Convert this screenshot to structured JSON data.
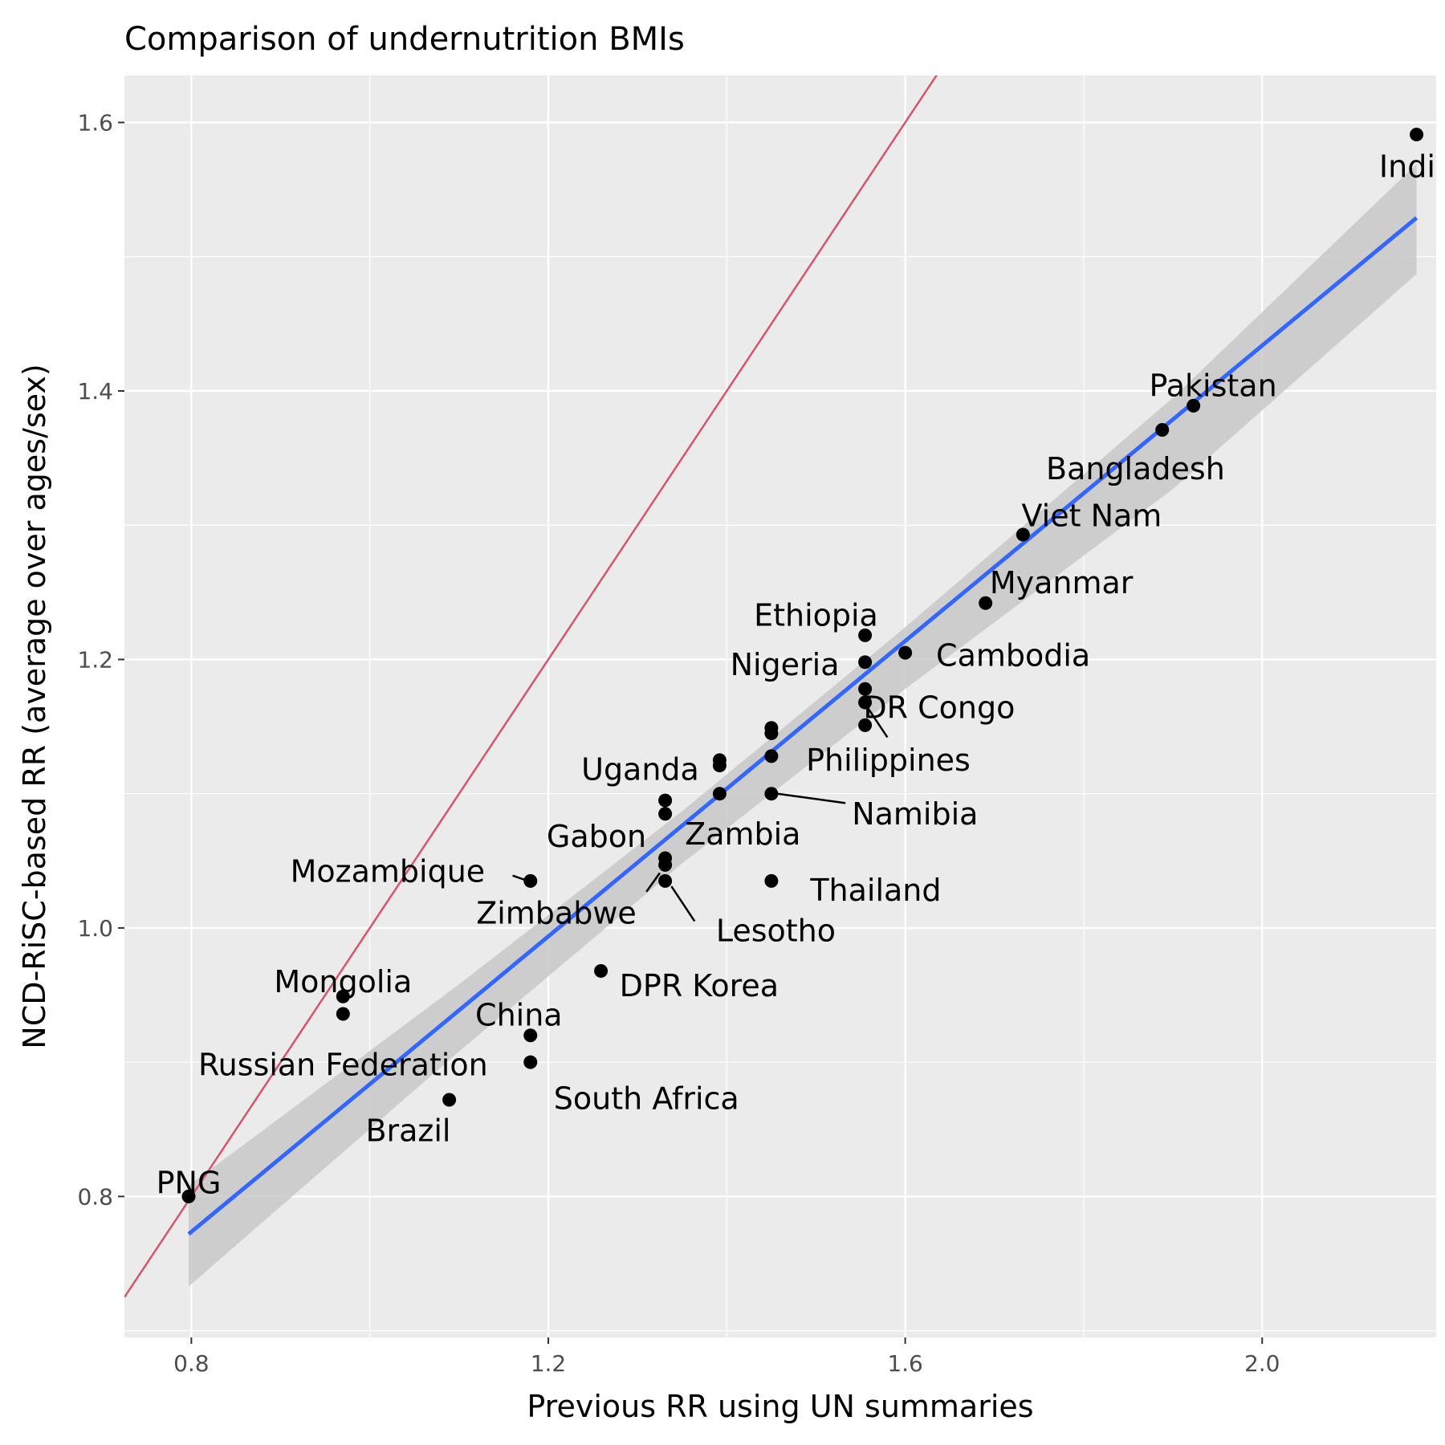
{
  "chart_data": {
    "type": "scatter",
    "title": "Comparison of undernutrition BMIs",
    "xlabel": "Previous RR using UN summaries",
    "ylabel": "NCD-RiSC-based RR (average over ages/sex)",
    "xlim": [
      0.725,
      2.195
    ],
    "ylim": [
      0.695,
      1.635
    ],
    "x_ticks": [
      "0.8",
      "1.2",
      "1.6",
      "2.0"
    ],
    "y_ticks": [
      "0.8",
      "1.0",
      "1.2",
      "1.4",
      "1.6"
    ],
    "grid": true,
    "points": [
      {
        "x": 0.797,
        "y": 0.8
      },
      {
        "x": 0.97,
        "y": 0.949
      },
      {
        "x": 0.97,
        "y": 0.936
      },
      {
        "x": 1.089,
        "y": 0.872
      },
      {
        "x": 1.18,
        "y": 0.92
      },
      {
        "x": 1.18,
        "y": 0.9
      },
      {
        "x": 1.18,
        "y": 1.035
      },
      {
        "x": 1.259,
        "y": 0.968
      },
      {
        "x": 1.331,
        "y": 1.095
      },
      {
        "x": 1.331,
        "y": 1.085
      },
      {
        "x": 1.331,
        "y": 1.052
      },
      {
        "x": 1.331,
        "y": 1.047
      },
      {
        "x": 1.331,
        "y": 1.035
      },
      {
        "x": 1.392,
        "y": 1.125
      },
      {
        "x": 1.392,
        "y": 1.121
      },
      {
        "x": 1.392,
        "y": 1.1
      },
      {
        "x": 1.45,
        "y": 1.149
      },
      {
        "x": 1.45,
        "y": 1.145
      },
      {
        "x": 1.45,
        "y": 1.128
      },
      {
        "x": 1.45,
        "y": 1.1
      },
      {
        "x": 1.45,
        "y": 1.035
      },
      {
        "x": 1.555,
        "y": 1.218
      },
      {
        "x": 1.555,
        "y": 1.198
      },
      {
        "x": 1.555,
        "y": 1.178
      },
      {
        "x": 1.555,
        "y": 1.168
      },
      {
        "x": 1.555,
        "y": 1.151
      },
      {
        "x": 1.6,
        "y": 1.205
      },
      {
        "x": 1.69,
        "y": 1.242
      },
      {
        "x": 1.732,
        "y": 1.293
      },
      {
        "x": 1.888,
        "y": 1.371
      },
      {
        "x": 1.923,
        "y": 1.389
      },
      {
        "x": 2.173,
        "y": 1.591
      }
    ],
    "labels": [
      {
        "text": "PNG",
        "x": 0.797,
        "y": 0.8,
        "lx": 0.797,
        "ly": 0.81,
        "anchor": "middle"
      },
      {
        "text": "Mongolia",
        "x": 0.97,
        "y": 0.949,
        "lx": 0.97,
        "ly": 0.96,
        "anchor": "middle"
      },
      {
        "text": "Russian Federation",
        "x": 0.97,
        "y": 0.936,
        "lx": 0.97,
        "ly": 0.898,
        "anchor": "middle"
      },
      {
        "text": "Brazil",
        "x": 1.089,
        "y": 0.872,
        "lx": 1.043,
        "ly": 0.849,
        "anchor": "middle"
      },
      {
        "text": "China",
        "x": 1.18,
        "y": 0.92,
        "lx": 1.167,
        "ly": 0.935,
        "anchor": "middle"
      },
      {
        "text": "South Africa",
        "x": 1.18,
        "y": 0.9,
        "lx": 1.31,
        "ly": 0.873,
        "anchor": "middle"
      },
      {
        "text": "Mozambique",
        "x": 1.18,
        "y": 1.035,
        "lx": 1.02,
        "ly": 1.042,
        "anchor": "middle",
        "line": [
          1.16,
          1.039,
          1.173,
          1.036
        ]
      },
      {
        "text": "DPR Korea",
        "x": 1.259,
        "y": 0.968,
        "lx": 1.369,
        "ly": 0.957,
        "anchor": "middle"
      },
      {
        "text": "Gabon",
        "x": 1.331,
        "y": 1.085,
        "lx": 1.254,
        "ly": 1.068,
        "anchor": "middle"
      },
      {
        "text": "Zambia",
        "x": 1.331,
        "y": 1.052,
        "lx": 1.418,
        "ly": 1.07,
        "anchor": "middle"
      },
      {
        "text": "Zimbabwe",
        "x": 1.331,
        "y": 1.047,
        "lx": 1.209,
        "ly": 1.011,
        "anchor": "middle",
        "line": [
          1.31,
          1.027,
          1.325,
          1.041
        ]
      },
      {
        "text": "Lesotho",
        "x": 1.331,
        "y": 1.035,
        "lx": 1.455,
        "ly": 0.998,
        "anchor": "middle",
        "line": [
          1.338,
          1.031,
          1.364,
          1.005
        ]
      },
      {
        "text": "Uganda",
        "x": 1.392,
        "y": 1.121,
        "lx": 1.303,
        "ly": 1.118,
        "anchor": "middle"
      },
      {
        "text": "Thailand",
        "x": 1.45,
        "y": 1.035,
        "lx": 1.567,
        "ly": 1.028,
        "anchor": "middle"
      },
      {
        "text": "Namibia",
        "x": 1.45,
        "y": 1.1,
        "lx": 1.611,
        "ly": 1.085,
        "anchor": "middle",
        "line": [
          1.457,
          1.1,
          1.533,
          1.093
        ]
      },
      {
        "text": "Philippines",
        "x": 1.45,
        "y": 1.128,
        "lx": 1.581,
        "ly": 1.125,
        "anchor": "middle"
      },
      {
        "text": "Ethiopia",
        "x": 1.555,
        "y": 1.218,
        "lx": 1.5,
        "ly": 1.233,
        "anchor": "middle"
      },
      {
        "text": "Nigeria",
        "x": 1.555,
        "y": 1.198,
        "lx": 1.465,
        "ly": 1.196,
        "anchor": "middle"
      },
      {
        "text": "DR Congo",
        "x": 1.555,
        "y": 1.168,
        "lx": 1.638,
        "ly": 1.164,
        "anchor": "middle",
        "line": [
          1.558,
          1.164,
          1.58,
          1.142
        ]
      },
      {
        "text": "Cambodia",
        "x": 1.6,
        "y": 1.205,
        "lx": 1.721,
        "ly": 1.203,
        "anchor": "middle"
      },
      {
        "text": "Myanmar",
        "x": 1.69,
        "y": 1.242,
        "lx": 1.775,
        "ly": 1.257,
        "anchor": "middle"
      },
      {
        "text": "Viet Nam",
        "x": 1.732,
        "y": 1.293,
        "lx": 1.809,
        "ly": 1.307,
        "anchor": "middle"
      },
      {
        "text": "Bangladesh",
        "x": 1.888,
        "y": 1.371,
        "lx": 1.858,
        "ly": 1.342,
        "anchor": "middle"
      },
      {
        "text": "Pakistan",
        "x": 1.923,
        "y": 1.389,
        "lx": 1.945,
        "ly": 1.404,
        "anchor": "middle"
      },
      {
        "text": "India",
        "x": 2.173,
        "y": 1.591,
        "lx": 2.173,
        "ly": 1.567,
        "anchor": "middle"
      }
    ],
    "reference_line": {
      "slope": 1,
      "intercept": 0,
      "color": "#d6546e"
    },
    "fit_line": {
      "x": [
        0.797,
        2.173
      ],
      "y": [
        0.772,
        1.529
      ],
      "color": "#3366ff"
    },
    "confidence_band": {
      "x": [
        0.797,
        1.1,
        1.35,
        1.6,
        1.9,
        2.173
      ],
      "upper": [
        0.808,
        0.958,
        1.087,
        1.224,
        1.395,
        1.569
      ],
      "lower": [
        0.733,
        0.908,
        1.048,
        1.178,
        1.327,
        1.487
      ],
      "color": "#c8c8c8"
    },
    "colors": {
      "panel": "#ebebeb",
      "grid_major": "#ffffff",
      "point": "#000000",
      "label_text": "#000000",
      "axis_text": "#4d4d4d"
    }
  }
}
